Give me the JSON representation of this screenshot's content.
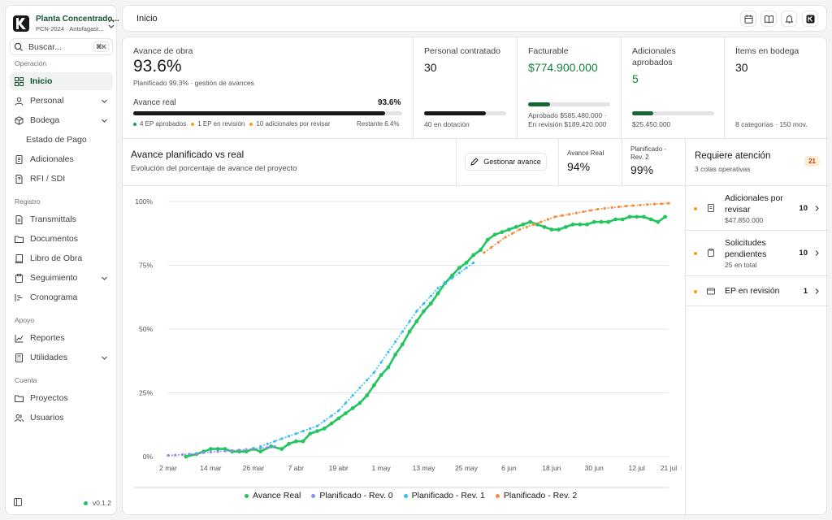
{
  "sidebar": {
    "project_name": "Planta Concentrado...",
    "project_sub": "PCN-2024 · Antofagast...",
    "search_placeholder": "Buscar...",
    "search_shortcut": "⌘K",
    "sections": {
      "operacion": "Operación",
      "registro": "Registro",
      "apoyo": "Apoyo",
      "cuenta": "Cuenta"
    },
    "items": {
      "inicio": "Inicio",
      "personal": "Personal",
      "bodega": "Bodega",
      "estado_pago": "Estado de Pago",
      "adicionales": "Adicionales",
      "rfi": "RFI / SDI",
      "transmittals": "Transmittals",
      "documentos": "Documentos",
      "libro": "Libro de Obra",
      "seguimiento": "Seguimiento",
      "cronograma": "Cronograma",
      "reportes": "Reportes",
      "utilidades": "Utilidades",
      "proyectos": "Proyectos",
      "usuarios": "Usuarios"
    },
    "version": "v0.1.2"
  },
  "header": {
    "title": "Inicio"
  },
  "cards": {
    "avance": {
      "title": "Avance de obra",
      "value": "93.6%",
      "sub": "Planificado 99.3% · gestión de avances",
      "real_label": "Avance real",
      "real_value": "93.6%",
      "progress": 0.936,
      "ep_aprobados": "4 EP aprobados",
      "ep_revision": "1 EP en revisión",
      "adicionales": "10 adicionales por revisar",
      "restante": "Restante 6.4%"
    },
    "personal": {
      "title": "Personal contratado",
      "value": "30",
      "progress": 0.75,
      "sub": "40 en dotación"
    },
    "facturable": {
      "title": "Facturable",
      "value": "$774.900.000",
      "progress": 0.27,
      "sub1": "Aprobado $585.480.000 ·",
      "sub2": "En revisión $189.420.000"
    },
    "adicionales": {
      "title1": "Adicionales",
      "title2": "aprobados",
      "value": "5",
      "progress": 0.26,
      "sub": "$25.450.000"
    },
    "items": {
      "title": "Ítems en bodega",
      "value": "30",
      "sub": "8 categorías · 150 mov."
    }
  },
  "chart_section": {
    "title": "Avance planificado vs real",
    "subtitle": "Evolución del porcentaje de avance del proyecto",
    "button": "Gestionar avance",
    "stat1_label": "Avance Real",
    "stat1_value": "94%",
    "stat2_label1": "Planificado -",
    "stat2_label2": "Rev. 2",
    "stat2_value": "99%"
  },
  "attention": {
    "title": "Requiere atención",
    "subtitle": "3 colas operativas",
    "badge": "21",
    "queues": [
      {
        "title1": "Adicionales por",
        "title2": "revisar",
        "sub": "$47.850.000",
        "count": "10"
      },
      {
        "title1": "Solicitudes",
        "title2": "pendientes",
        "sub": "25 en total",
        "count": "10"
      },
      {
        "title1": "EP en revisión",
        "title2": "",
        "sub": "",
        "count": "1"
      }
    ]
  },
  "colors": {
    "real": "#22c55e",
    "rev0": "#8b8cf0",
    "rev1": "#38bdf8",
    "rev2": "#f38b3c",
    "accent_green": "#16a34a",
    "warning": "#f59e0b"
  },
  "chart_data": {
    "type": "line",
    "x_ticks": [
      "2 mar",
      "14 mar",
      "26 mar",
      "7 abr",
      "19 abr",
      "1 may",
      "13 may",
      "25 may",
      "6 jun",
      "18 jun",
      "30 jun",
      "12 jul",
      "21 jul"
    ],
    "y_ticks": [
      "0%",
      "25%",
      "50%",
      "75%",
      "100%"
    ],
    "ylim": [
      0,
      100
    ],
    "grid": true,
    "legend_position": "bottom",
    "series": [
      {
        "name": "Avance Real",
        "color": "#22c55e",
        "x": [
          "2026-03-07",
          "2026-03-10",
          "2026-03-12",
          "2026-03-14",
          "2026-03-16",
          "2026-03-18",
          "2026-03-20",
          "2026-03-22",
          "2026-03-24",
          "2026-03-26",
          "2026-03-28",
          "2026-03-31",
          "2026-04-03",
          "2026-04-05",
          "2026-04-07",
          "2026-04-09",
          "2026-04-11",
          "2026-04-13",
          "2026-04-15",
          "2026-04-17",
          "2026-04-19",
          "2026-04-21",
          "2026-04-23",
          "2026-04-25",
          "2026-04-27",
          "2026-04-29",
          "2026-05-01",
          "2026-05-03",
          "2026-05-05",
          "2026-05-07",
          "2026-05-09",
          "2026-05-11",
          "2026-05-13",
          "2026-05-15",
          "2026-05-17",
          "2026-05-19",
          "2026-05-21",
          "2026-05-23",
          "2026-05-25",
          "2026-05-27",
          "2026-05-29",
          "2026-05-31",
          "2026-06-02",
          "2026-06-04",
          "2026-06-06",
          "2026-06-08",
          "2026-06-10",
          "2026-06-12",
          "2026-06-14",
          "2026-06-16",
          "2026-06-18",
          "2026-06-20",
          "2026-06-22",
          "2026-06-24",
          "2026-06-26",
          "2026-06-28",
          "2026-06-30",
          "2026-07-02",
          "2026-07-04",
          "2026-07-06",
          "2026-07-08",
          "2026-07-10",
          "2026-07-12",
          "2026-07-14",
          "2026-07-16",
          "2026-07-18",
          "2026-07-20"
        ],
        "y": [
          0,
          1,
          2,
          3,
          3,
          3,
          2,
          2,
          2,
          3,
          2,
          4,
          3,
          5,
          6,
          6,
          9,
          10,
          11,
          13,
          15,
          17,
          19,
          21,
          24,
          28,
          32,
          35,
          40,
          44,
          49,
          53,
          57,
          60,
          64,
          68,
          71,
          74,
          76,
          79,
          81,
          85,
          87,
          88,
          89,
          90,
          91,
          92,
          91,
          90,
          89,
          89,
          90,
          91,
          91,
          91,
          92,
          92,
          92,
          93,
          93,
          94,
          94,
          94,
          93,
          92,
          94
        ]
      },
      {
        "name": "Planificado - Rev. 0",
        "color": "#8b8cf0",
        "x": [
          "2026-03-02",
          "2026-03-04",
          "2026-03-06",
          "2026-03-08",
          "2026-03-10",
          "2026-03-12",
          "2026-03-14",
          "2026-03-16",
          "2026-03-18",
          "2026-03-20",
          "2026-03-22",
          "2026-03-24",
          "2026-03-26",
          "2026-03-28",
          "2026-03-30",
          "2026-04-01"
        ],
        "y": [
          0.5,
          0.6,
          0.8,
          1.0,
          1.2,
          1.5,
          1.8,
          2.0,
          2.2,
          2.4,
          2.6,
          2.8,
          3.0,
          3.3,
          3.6,
          4.0
        ]
      },
      {
        "name": "Planificado - Rev. 1",
        "color": "#38bdf8",
        "x": [
          "2026-03-28",
          "2026-03-30",
          "2026-04-01",
          "2026-04-03",
          "2026-04-05",
          "2026-04-07",
          "2026-04-09",
          "2026-04-11",
          "2026-04-13",
          "2026-04-15",
          "2026-04-17",
          "2026-04-19",
          "2026-04-21",
          "2026-04-23",
          "2026-04-25",
          "2026-04-27",
          "2026-04-29",
          "2026-05-01",
          "2026-05-03",
          "2026-05-05",
          "2026-05-07",
          "2026-05-09",
          "2026-05-11",
          "2026-05-13",
          "2026-05-15",
          "2026-05-17",
          "2026-05-19",
          "2026-05-21",
          "2026-05-23",
          "2026-05-25",
          "2026-05-27"
        ],
        "y": [
          4,
          5,
          6,
          7,
          8,
          9,
          10,
          11,
          12,
          14,
          16,
          18,
          21,
          24,
          27,
          30,
          33,
          37,
          41,
          45,
          49,
          53,
          57,
          60,
          63,
          66,
          68,
          70,
          72,
          74,
          76
        ]
      },
      {
        "name": "Planificado - Rev. 2",
        "color": "#f38b3c",
        "x": [
          "2026-05-30",
          "2026-06-01",
          "2026-06-03",
          "2026-06-05",
          "2026-06-07",
          "2026-06-09",
          "2026-06-11",
          "2026-06-13",
          "2026-06-15",
          "2026-06-17",
          "2026-06-19",
          "2026-06-21",
          "2026-06-23",
          "2026-06-25",
          "2026-06-27",
          "2026-06-29",
          "2026-07-01",
          "2026-07-03",
          "2026-07-05",
          "2026-07-07",
          "2026-07-09",
          "2026-07-11",
          "2026-07-13",
          "2026-07-15",
          "2026-07-17",
          "2026-07-19",
          "2026-07-21"
        ],
        "y": [
          80,
          82,
          84,
          86,
          87.5,
          89,
          90,
          91,
          92,
          93,
          94,
          94.5,
          95,
          95.5,
          96,
          96.5,
          97,
          97.3,
          97.6,
          97.9,
          98.2,
          98.4,
          98.6,
          98.8,
          99.0,
          99.1,
          99.3
        ]
      }
    ]
  }
}
